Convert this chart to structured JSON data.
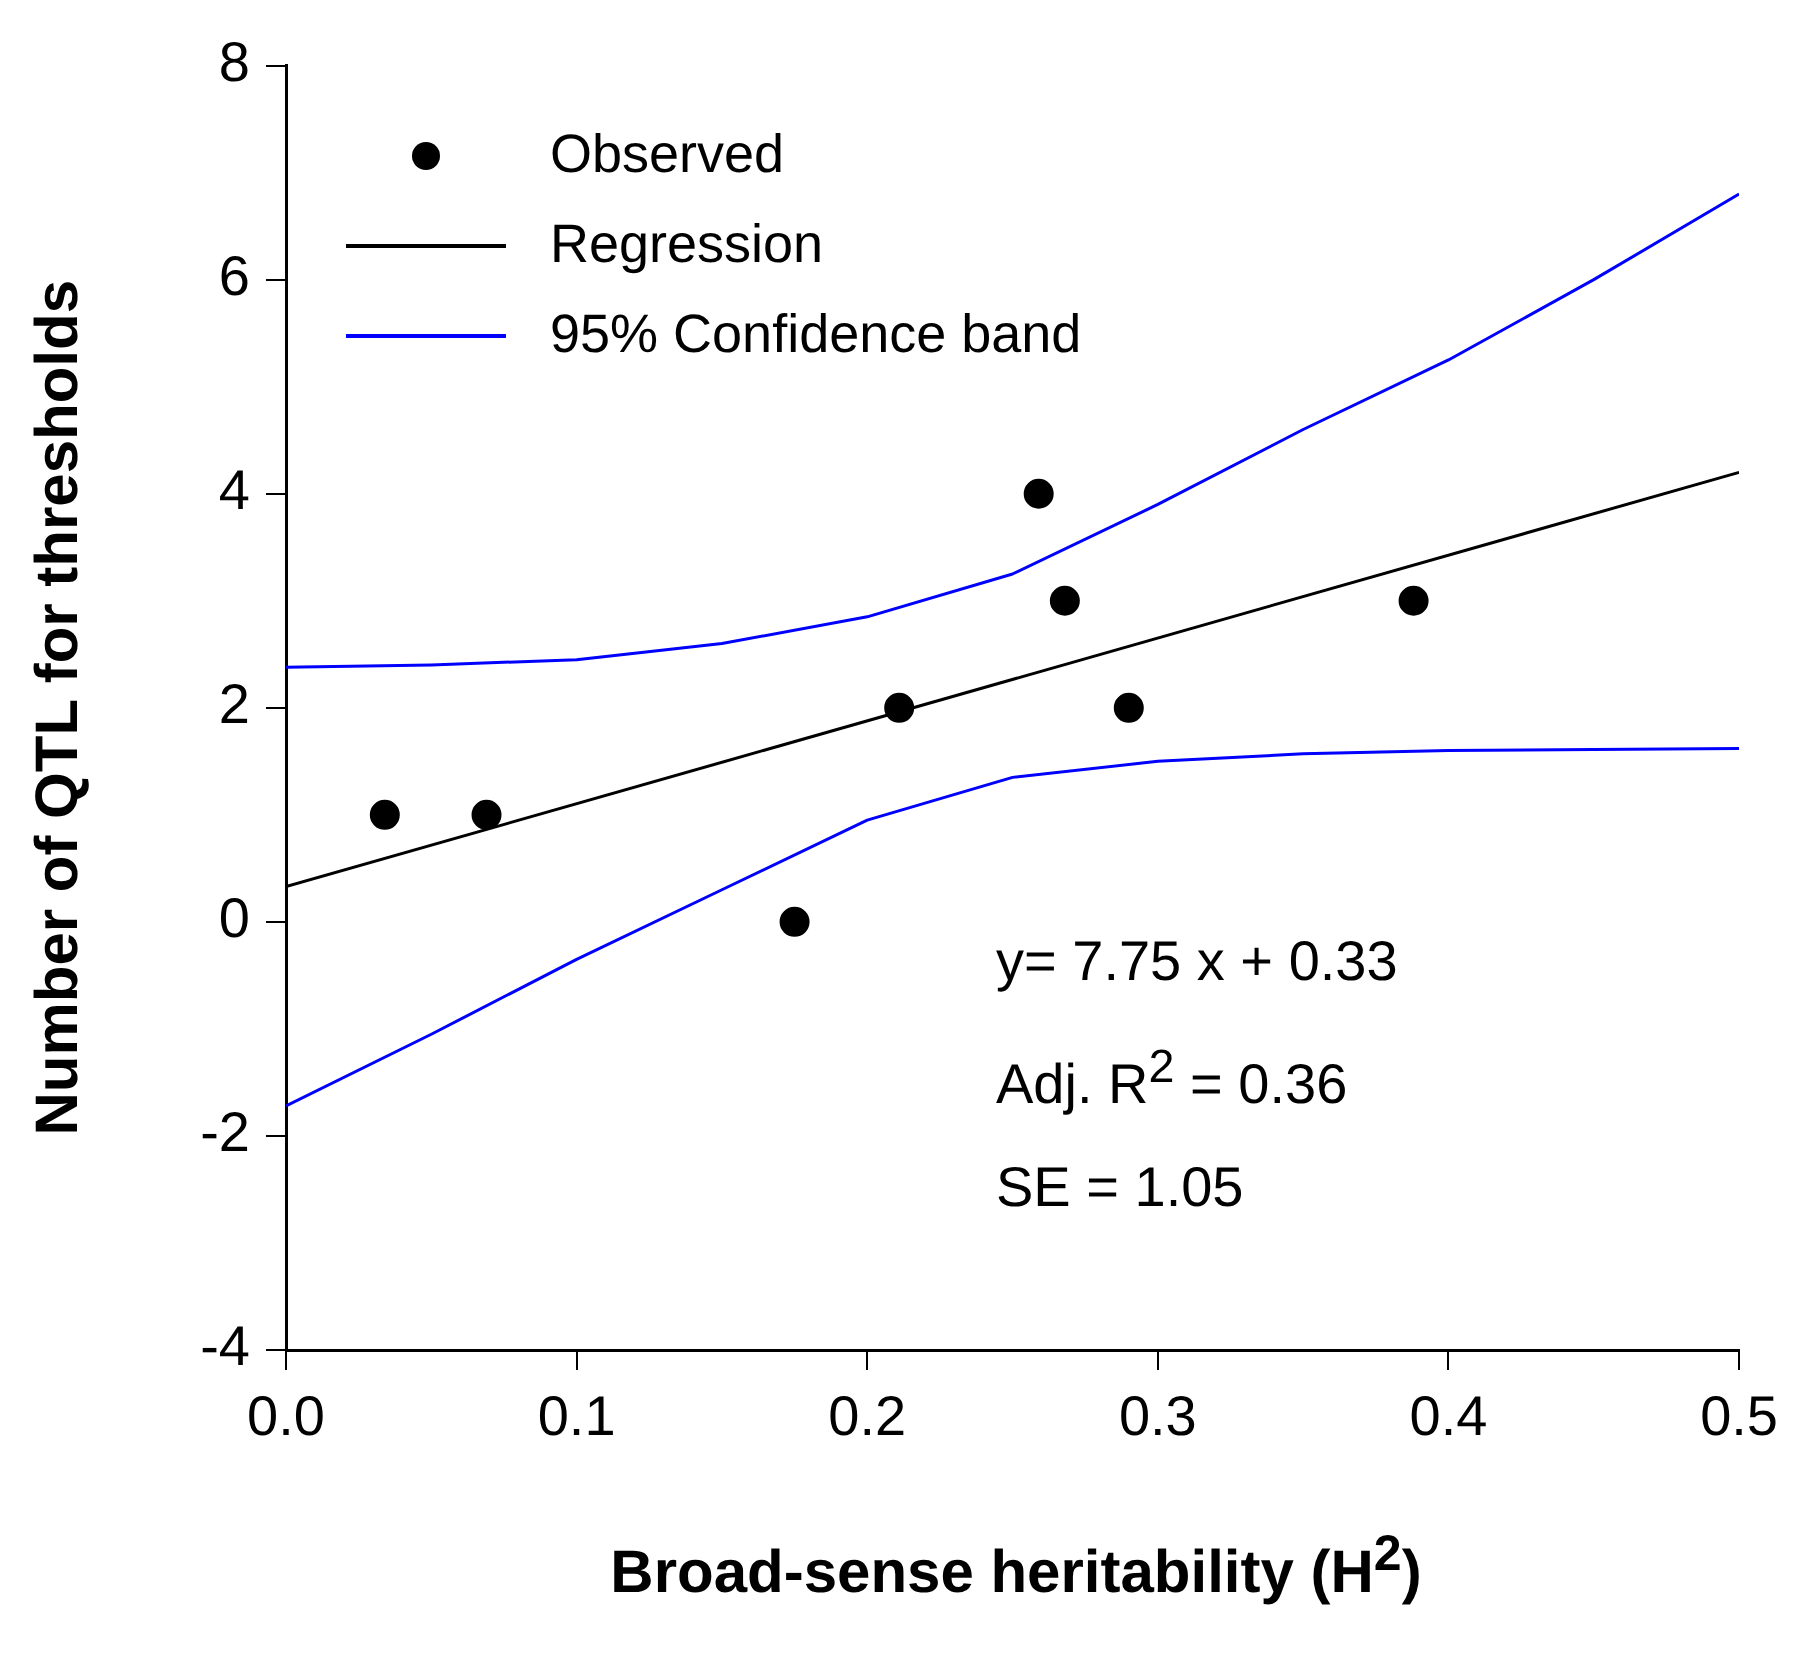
{
  "chart_data": {
    "type": "scatter",
    "xlabel": "Broad-sense heritability (H$^{2}$)",
    "ylabel": "Number of QTL for thresholds",
    "xlim": [
      0,
      0.5
    ],
    "ylim": [
      -4,
      8
    ],
    "xticks": [
      {
        "value": 0,
        "label": "0.0"
      },
      {
        "value": 0.1,
        "label": "0.1"
      },
      {
        "value": 0.2,
        "label": "0.2"
      },
      {
        "value": 0.3,
        "label": "0.3"
      },
      {
        "value": 0.4,
        "label": "0.4"
      },
      {
        "value": 0.5,
        "label": "0.5"
      }
    ],
    "yticks": [
      -4,
      -2,
      0,
      2,
      4,
      6,
      8
    ],
    "grid": false,
    "legend": "top left",
    "series": [
      {
        "name": "Observed",
        "type": "scatter",
        "marker": "circle",
        "color": "#000000",
        "x": [
          0.034,
          0.069,
          0.175,
          0.211,
          0.259,
          0.268,
          0.29,
          0.388
        ],
        "values": [
          1,
          1,
          0,
          2,
          4,
          3,
          2,
          3
        ]
      },
      {
        "name": "Regression",
        "type": "line",
        "color": "#000000",
        "x": [
          0,
          0.5
        ],
        "values": [
          0.33,
          4.2
        ]
      },
      {
        "name": "95% Confidence band",
        "type": "line",
        "color": "#0000ff",
        "x": [
          0,
          0.05,
          0.1,
          0.15,
          0.2,
          0.25,
          0.3,
          0.35,
          0.4,
          0.45,
          0.5
        ],
        "values": [
          2.38,
          2.4,
          2.45,
          2.6,
          2.85,
          3.25,
          3.9,
          4.6,
          5.25,
          6.0,
          6.8
        ]
      },
      {
        "type": "line",
        "color": "#0000ff",
        "x": [
          0,
          0.05,
          0.1,
          0.15,
          0.2,
          0.25,
          0.3,
          0.35,
          0.4,
          0.45,
          0.5
        ],
        "values": [
          -1.72,
          -1.05,
          -0.35,
          0.3,
          0.95,
          1.35,
          1.5,
          1.57,
          1.6,
          1.61,
          1.62
        ]
      }
    ],
    "annotations": [
      "y= 7.75 x + 0.33",
      "Adj. R$^{2}$ = 0.36",
      "SE = 1.05"
    ]
  }
}
